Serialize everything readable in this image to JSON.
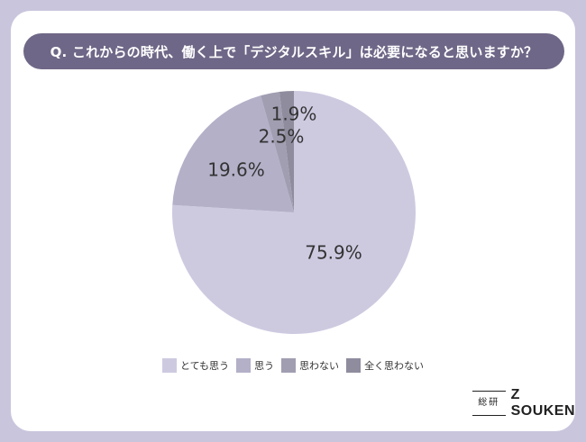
{
  "title": "Q. これからの時代、働く上で「デジタルスキル」は必要になると思いますか？",
  "chart_data": {
    "type": "pie",
    "categories": [
      "とても思う",
      "思う",
      "思わない",
      "全く思わない"
    ],
    "values": [
      75.9,
      19.6,
      2.5,
      1.9
    ],
    "labels": [
      "75.9%",
      "19.6%",
      "2.5%",
      "1.9%"
    ],
    "colors": [
      "#cdcae0",
      "#b3b0c8",
      "#a19eb2",
      "#8f8c9e"
    ],
    "start_angle_deg": 0,
    "direction": "clockwise",
    "legend_position": "bottom"
  },
  "logo": {
    "mark": "総研",
    "text": "Z SOUKEN"
  }
}
